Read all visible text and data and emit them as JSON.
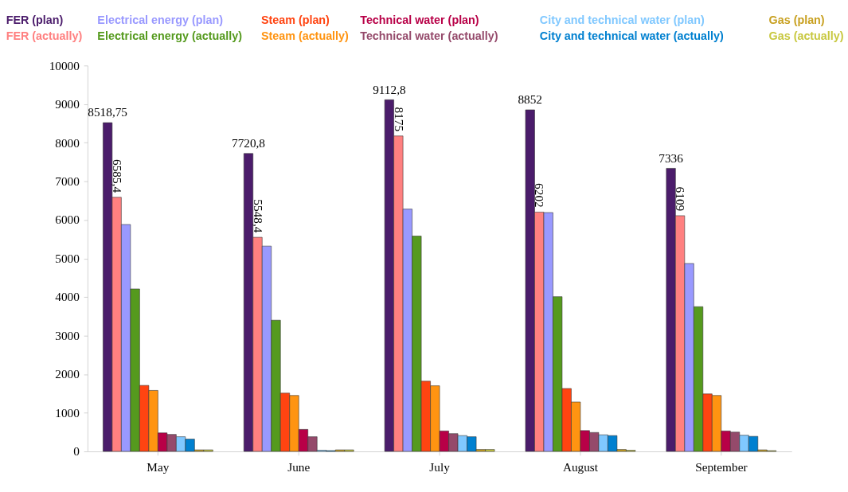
{
  "chart_data": {
    "type": "bar",
    "categories": [
      "May",
      "June",
      "July",
      "August",
      "September"
    ],
    "series": [
      {
        "name": "FER (plan)",
        "color": "#4b1c6b",
        "values": [
          8518.75,
          7720.8,
          9112.8,
          8852,
          7336
        ],
        "value_labels": [
          "8518,75",
          "7720,8",
          "9112,8",
          "8852",
          "7336"
        ]
      },
      {
        "name": "FER (actually)",
        "color": "#ff8080",
        "values": [
          6585.4,
          5548.4,
          8175,
          6202,
          6109
        ],
        "value_labels": [
          "6585,4",
          "5548,4",
          "8175",
          "6202",
          "6109"
        ]
      },
      {
        "name": "Electrical energy (plan)",
        "color": "#9999ff",
        "values": [
          5880,
          5320,
          6280,
          6190,
          4870
        ]
      },
      {
        "name": "Electrical energy (actually)",
        "color": "#559a1e",
        "values": [
          4210,
          3400,
          5580,
          4010,
          3750
        ]
      },
      {
        "name": "Steam (plan)",
        "color": "#ff4411",
        "values": [
          1710,
          1510,
          1820,
          1630,
          1490
        ]
      },
      {
        "name": "Steam (actually)",
        "color": "#ff9411",
        "values": [
          1580,
          1450,
          1700,
          1280,
          1450
        ]
      },
      {
        "name": "Technical water (plan)",
        "color": "#b80047",
        "values": [
          480,
          570,
          530,
          540,
          530
        ]
      },
      {
        "name": "Technical water (actually)",
        "color": "#954a6b",
        "values": [
          440,
          380,
          460,
          490,
          500
        ]
      },
      {
        "name": "City and technical water (plan)",
        "color": "#80c8ff",
        "values": [
          380,
          30,
          410,
          430,
          420
        ]
      },
      {
        "name": "City and technical water (actually)",
        "color": "#0080d0",
        "values": [
          320,
          20,
          380,
          410,
          390
        ]
      },
      {
        "name": "Gas (plan)",
        "color": "#c8a020",
        "values": [
          40,
          40,
          50,
          50,
          40
        ]
      },
      {
        "name": "Gas (actually)",
        "color": "#c8c840",
        "values": [
          40,
          40,
          50,
          30,
          20
        ]
      }
    ],
    "ylim": [
      0,
      10000
    ],
    "yticks": [
      0,
      1000,
      2000,
      3000,
      4000,
      5000,
      6000,
      7000,
      8000,
      9000,
      10000
    ],
    "grid": false,
    "legend": "top"
  }
}
